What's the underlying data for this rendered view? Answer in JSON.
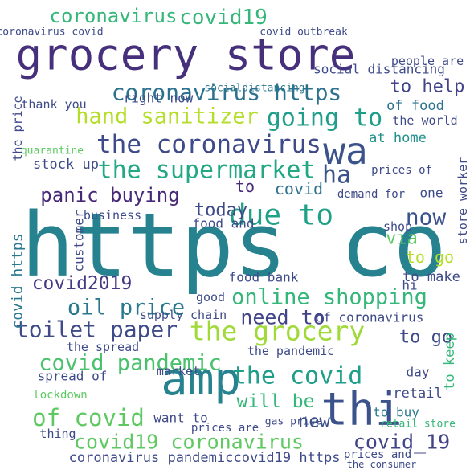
{
  "words": [
    "https co",
    "grocery store",
    "coronavirus",
    "covid19",
    "coronavirus https",
    "hand sanitizer",
    "going to",
    "the coronavirus",
    "wa",
    "the supermarket",
    "ha",
    "panic buying",
    "due to",
    "now",
    "today",
    "covid",
    "to",
    "online shopping",
    "oil price",
    "covid2019",
    "toilet paper",
    "the grocery",
    "need to",
    "covid pandemic",
    "amp",
    "the covid",
    "thi",
    "of covid",
    "will be",
    "covid19 coronavirus",
    "covid_19",
    "new",
    "coronavirus pandemic",
    "covid19 https",
    "to help",
    "social distancing",
    "people are",
    "of food",
    "the world",
    "thank you",
    "right now",
    "socialdistancing",
    "at home",
    "store worker",
    "the price",
    "stock up",
    "quarantine",
    "prices of",
    "one",
    "demand for",
    "via",
    "to go",
    "to make",
    "food bank",
    "customer",
    "covid https",
    "to go",
    "of coronavirus",
    "the pandemic",
    "the spread",
    "spread of",
    "market",
    "lockdown",
    "retail",
    "day",
    "to buy",
    "want to",
    "prices are",
    "thing",
    "business",
    "food and",
    "good",
    "supply chain",
    "covid outbreak",
    "coronavirus covid",
    "to keep",
    "shop",
    "hi",
    "gas price",
    "retail store",
    "prices and",
    "the consumer"
  ]
}
